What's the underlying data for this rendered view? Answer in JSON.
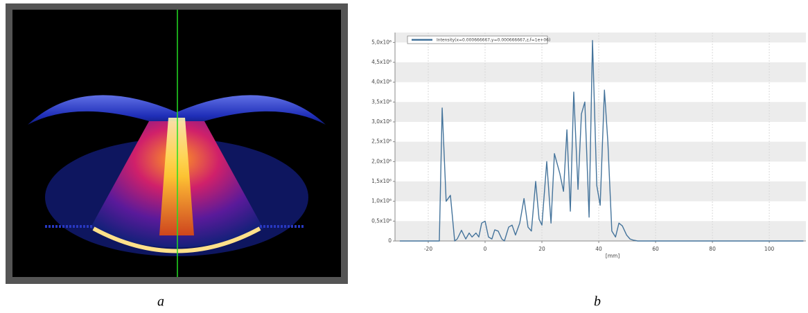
{
  "captions": [
    "a",
    "b"
  ],
  "chart_data": {
    "type": "line",
    "x_label": "[mm]",
    "x": [
      -30,
      -16.1,
      -15.1,
      -13.7,
      -12.2,
      -10.7,
      -9.8,
      -8.3,
      -6.8,
      -5.6,
      -4.6,
      -3.2,
      -2.2,
      -1.2,
      0,
      1.2,
      2.4,
      3.4,
      4.6,
      5.9,
      6.8,
      8.3,
      9.5,
      10.7,
      12.2,
      13.7,
      15.1,
      16.3,
      17.8,
      19.0,
      20.0,
      21.7,
      23.2,
      24.4,
      26.3,
      27.6,
      28.8,
      30.0,
      31.2,
      32.7,
      33.9,
      35.1,
      36.6,
      37.8,
      39.3,
      40.5,
      42.0,
      43.2,
      44.6,
      45.9,
      47.1,
      48.3,
      49.8,
      51.0,
      52.2,
      53.7,
      112
    ],
    "series": [
      {
        "name": "Intensity(x=0.000666667,y=0.000666667,z,f=1e+06)",
        "color": "#44739b",
        "values": [
          0,
          0,
          3350000,
          1000000,
          1150000,
          0,
          50000,
          270000,
          50000,
          200000,
          100000,
          200000,
          100000,
          450000,
          500000,
          100000,
          50000,
          280000,
          250000,
          50000,
          0,
          350000,
          400000,
          150000,
          450000,
          1070000,
          350000,
          250000,
          1500000,
          550000,
          400000,
          2000000,
          450000,
          2200000,
          1700000,
          1250000,
          2800000,
          750000,
          3750000,
          1300000,
          3200000,
          3500000,
          600000,
          5050000,
          1400000,
          900000,
          3800000,
          2500000,
          250000,
          100000,
          450000,
          380000,
          150000,
          50000,
          20000,
          0,
          0
        ]
      }
    ],
    "xlim": [
      -31.7,
      112.9
    ],
    "xticks": [
      -20,
      0,
      20,
      40,
      60,
      80,
      100
    ],
    "ylim": [
      0,
      5250000
    ],
    "yticks": [
      0,
      {
        "value": 500000,
        "label": "0,5x10⁶"
      },
      {
        "value": 1000000,
        "label": "1,0x10⁶"
      },
      {
        "value": 1500000,
        "label": "1,5x10⁶"
      },
      {
        "value": 2000000,
        "label": "2,0x10⁶"
      },
      {
        "value": 2500000,
        "label": "2,5x10⁶"
      },
      {
        "value": 3000000,
        "label": "3,0x10⁶"
      },
      {
        "value": 3500000,
        "label": "3,5x10⁶"
      },
      {
        "value": 4000000,
        "label": "4,0x10⁶"
      },
      {
        "value": 4500000,
        "label": "4,5x10⁶"
      },
      {
        "value": 5000000,
        "label": "5,0x10⁶"
      }
    ],
    "grid": true,
    "band_color": "#ececec",
    "legend": "top-left"
  }
}
